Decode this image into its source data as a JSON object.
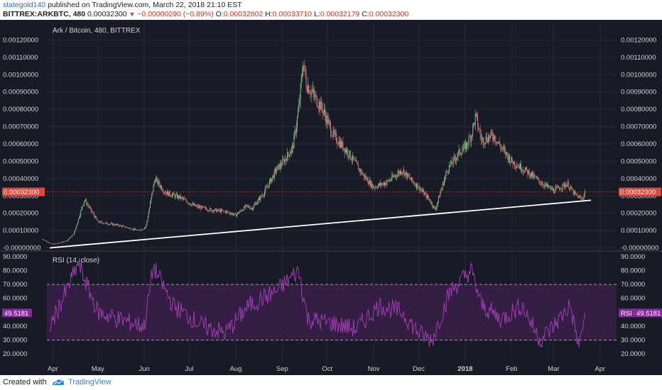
{
  "header": {
    "user": "stategold140",
    "published": "published on TradingView.com, March 22, 2018 21:10 EST",
    "symbol": "BITTREX:ARKBTC, 480",
    "last_price": "0.00032300",
    "change": "−0.00000290 (−0.89%)",
    "open_label": "O:",
    "open": "0.00032802",
    "high_label": "H:",
    "high": "0.00033710",
    "low_label": "L:",
    "low": "0.00032179",
    "close_label": "C:",
    "close": "0.00032300"
  },
  "footer": {
    "created_with": "Created with",
    "brand": "TradingView"
  },
  "colors": {
    "background": "#171b26",
    "grid": "#262b38",
    "candle_up": "#8fc68c",
    "candle_down": "#d97c7c",
    "price_line": "#e0473f",
    "trendline": "#ffffff",
    "rsi_line": "#a640b8",
    "rsi_band": "#3a1f4a",
    "text": "#d1d4dc"
  },
  "chart_data": [
    {
      "type": "candlestick",
      "title": "Ark / Bitcoin, 480, BITTREX",
      "y_ticks": [
        "0.00120000",
        "0.00110000",
        "0.00100000",
        "0.00090000",
        "0.00080000",
        "0.00070000",
        "0.00060000",
        "0.00050000",
        "0.00040000",
        "0.00030000",
        "0.00020000",
        "0.00010000",
        "-0.00000000"
      ],
      "ylim": [
        -1e-05,
        0.0013
      ],
      "x_ticks": [
        "Apr",
        "May",
        "Jun",
        "Jul",
        "Aug",
        "Sep",
        "Oct",
        "Nov",
        "Dec",
        "2018",
        "Feb",
        "Mar",
        "Apr"
      ],
      "current_price_label": "0.00032300",
      "current_price": 0.000323,
      "series": [
        {
          "name": "close",
          "x": [
            "2017-03-25",
            "2017-04-01",
            "2017-04-10",
            "2017-04-15",
            "2017-04-22",
            "2017-05-01",
            "2017-05-15",
            "2017-05-28",
            "2017-06-02",
            "2017-06-08",
            "2017-06-15",
            "2017-06-25",
            "2017-07-05",
            "2017-07-15",
            "2017-07-25",
            "2017-08-01",
            "2017-08-08",
            "2017-08-12",
            "2017-08-20",
            "2017-08-28",
            "2017-09-02",
            "2017-09-08",
            "2017-09-12",
            "2017-09-15",
            "2017-09-17",
            "2017-09-22",
            "2017-09-28",
            "2017-10-05",
            "2017-10-15",
            "2017-10-25",
            "2017-11-01",
            "2017-11-10",
            "2017-11-20",
            "2017-11-25",
            "2017-12-01",
            "2017-12-08",
            "2017-12-12",
            "2017-12-20",
            "2017-12-28",
            "2018-01-01",
            "2018-01-05",
            "2018-01-08",
            "2018-01-12",
            "2018-01-20",
            "2018-01-25",
            "2018-02-01",
            "2018-02-10",
            "2018-02-20",
            "2018-03-01",
            "2018-03-10",
            "2018-03-15",
            "2018-03-20",
            "2018-03-22"
          ],
          "values": [
            5e-05,
            2e-05,
            4e-05,
            8e-05,
            0.00028,
            0.00015,
            0.00013,
            0.0001,
            0.00012,
            0.0004,
            0.00032,
            0.00029,
            0.00024,
            0.00022,
            0.00021,
            0.00019,
            0.00024,
            0.00023,
            0.00032,
            0.00045,
            0.0005,
            0.00058,
            0.0008,
            0.00108,
            0.00095,
            0.00088,
            0.0008,
            0.00065,
            0.00055,
            0.00042,
            0.00035,
            0.00038,
            0.00045,
            0.0004,
            0.00035,
            0.00028,
            0.00022,
            0.00045,
            0.00055,
            0.00058,
            0.00065,
            0.00076,
            0.00062,
            0.00065,
            0.00058,
            0.0005,
            0.00045,
            0.00038,
            0.00033,
            0.00037,
            0.00031,
            0.00028,
            0.000323
          ]
        }
      ],
      "trendline": {
        "x": [
          "2017-03-30",
          "2018-03-26"
        ],
        "y": [
          0.0,
          0.000275
        ]
      }
    },
    {
      "type": "line",
      "title": "RSI (14, close)",
      "y_ticks": [
        "90.0000",
        "80.0000",
        "70.0000",
        "60.0000",
        "50.0000",
        "40.0000",
        "30.0000",
        "20.0000"
      ],
      "ylim": [
        15,
        93
      ],
      "bands": [
        30,
        70
      ],
      "value_label": "49.5181",
      "value_tag": "RSI",
      "value": 49.5181,
      "series": [
        {
          "name": "RSI",
          "x": [
            "2017-03-30",
            "2017-04-10",
            "2017-04-18",
            "2017-05-01",
            "2017-05-15",
            "2017-06-01",
            "2017-06-07",
            "2017-06-20",
            "2017-07-10",
            "2017-07-25",
            "2017-08-10",
            "2017-08-28",
            "2017-09-12",
            "2017-09-18",
            "2017-10-05",
            "2017-10-20",
            "2017-11-05",
            "2017-11-20",
            "2017-12-01",
            "2017-12-10",
            "2017-12-22",
            "2018-01-05",
            "2018-01-12",
            "2018-01-25",
            "2018-02-08",
            "2018-02-20",
            "2018-03-01",
            "2018-03-12",
            "2018-03-18",
            "2018-03-22"
          ],
          "values": [
            40,
            65,
            85,
            50,
            45,
            40,
            83,
            55,
            40,
            35,
            55,
            65,
            80,
            45,
            42,
            38,
            55,
            50,
            35,
            30,
            65,
            80,
            55,
            45,
            55,
            30,
            40,
            55,
            25,
            49.5181
          ]
        }
      ]
    }
  ]
}
